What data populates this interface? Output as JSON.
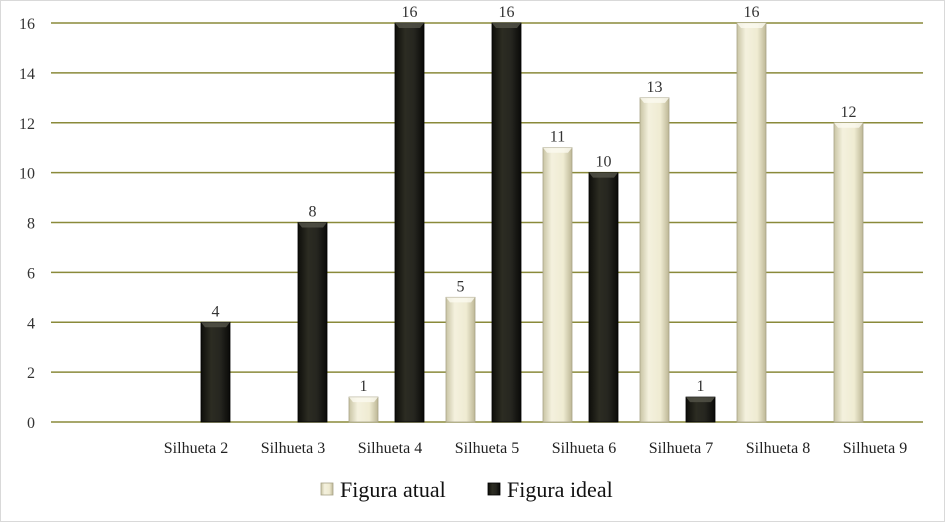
{
  "chart_data": {
    "type": "bar",
    "title": "",
    "xlabel": "",
    "ylabel": "",
    "ylim": [
      0,
      16
    ],
    "yticks": [
      0,
      2,
      4,
      6,
      8,
      10,
      12,
      14,
      16
    ],
    "grid": true,
    "legend_position": "bottom",
    "categories": [
      "Silhueta 2",
      "Silhueta 3",
      "Silhueta 4",
      "Silhueta 5",
      "Silhueta 6",
      "Silhueta 7",
      "Silhueta 8",
      "Silhueta 9"
    ],
    "series": [
      {
        "name": "Figura atual",
        "color": "#e6e2c8",
        "values": [
          null,
          null,
          1,
          5,
          11,
          13,
          16,
          12
        ]
      },
      {
        "name": "Figura ideal",
        "color": "#1f1f18",
        "values": [
          4,
          8,
          16,
          16,
          10,
          1,
          null,
          null
        ]
      }
    ],
    "gridline_color": "#8a8a3a"
  }
}
